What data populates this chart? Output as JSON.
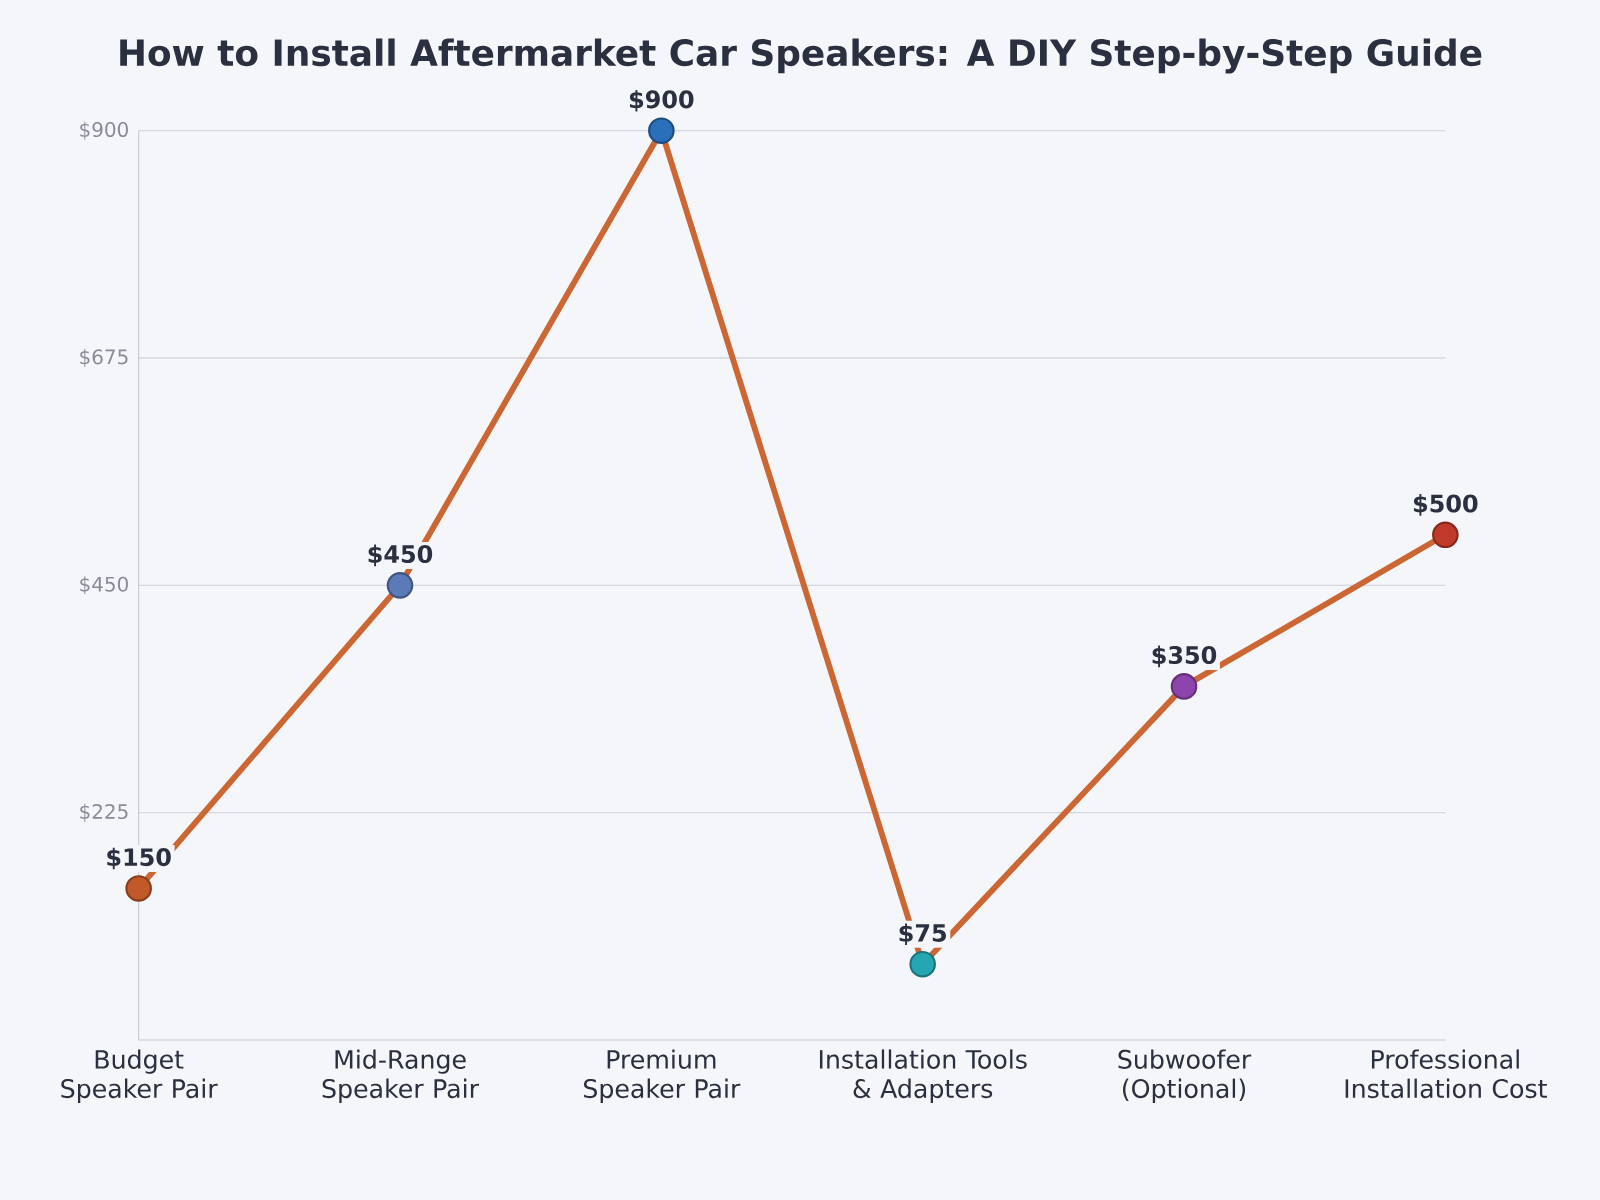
{
  "chart_data": {
    "type": "line",
    "title": "How to Install Aftermarket Car Speakers: A DIY Step-by-Step Guide",
    "categories": [
      "Budget Speaker Pair",
      "Mid-Range Speaker Pair",
      "Premium Speaker Pair",
      "Installation Tools & Adapters",
      "Subwoofer (Optional)",
      "Professional Installation Cost"
    ],
    "series": [
      {
        "color": "#cc6633",
        "colors": [
          "#c0582a",
          "#5a7ab8",
          "#2a6fba",
          "#26a6b0",
          "#8e44ad",
          "#c0392b"
        ],
        "values": [
          150,
          450,
          900,
          75,
          350,
          500
        ],
        "value_labels": [
          "$150",
          "$450",
          "$900",
          "$75",
          "$350",
          "$500"
        ]
      }
    ],
    "ylim": [
      0,
      900
    ],
    "yticks": [
      {
        "value": 225,
        "label": "$225"
      },
      {
        "value": 450,
        "label": "$450"
      },
      {
        "value": 675,
        "label": "$675"
      },
      {
        "value": 900,
        "label": "$900"
      }
    ],
    "grid": "y",
    "marker": "circle",
    "line_style": "solid"
  }
}
